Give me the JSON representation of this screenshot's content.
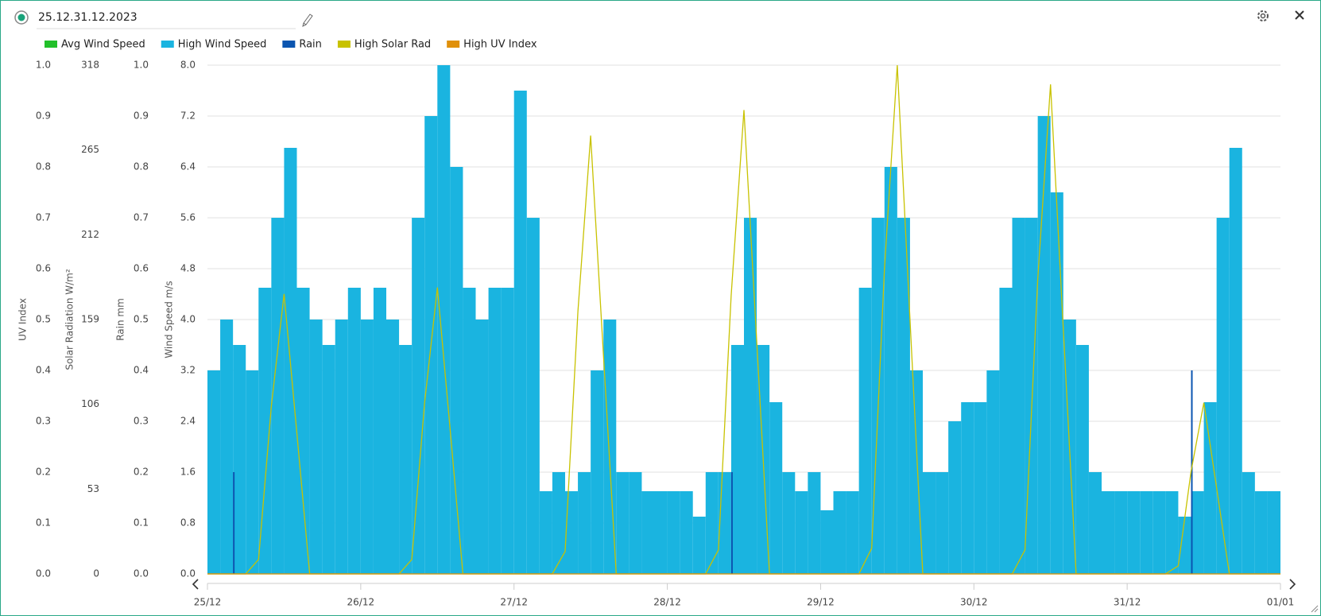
{
  "chart_data": {
    "type": "multi-axis",
    "title": "25.12.31.12.2023",
    "axes": [
      {
        "label": "UV Index",
        "lim": [
          0,
          1
        ],
        "ticks": [
          {
            "value": 0,
            "label": "0.0"
          },
          {
            "value": 0.1,
            "label": "0.1"
          },
          {
            "value": 0.2,
            "label": "0.2"
          },
          {
            "value": 0.3,
            "label": "0.3"
          },
          {
            "value": 0.4,
            "label": "0.4"
          },
          {
            "value": 0.5,
            "label": "0.5"
          },
          {
            "value": 0.6,
            "label": "0.6"
          },
          {
            "value": 0.7,
            "label": "0.7"
          },
          {
            "value": 0.8,
            "label": "0.8"
          },
          {
            "value": 0.9,
            "label": "0.9"
          },
          {
            "value": 1,
            "label": "1.0"
          }
        ]
      },
      {
        "label": "Solar Radiation W/m²",
        "lim": [
          0,
          318
        ],
        "ticks": [
          0,
          53,
          106,
          159,
          212,
          265,
          318
        ]
      },
      {
        "label": "Rain mm",
        "lim": [
          0,
          1
        ],
        "ticks": [
          {
            "value": 0,
            "label": "0.0"
          },
          {
            "value": 0.1,
            "label": "0.1"
          },
          {
            "value": 0.2,
            "label": "0.2"
          },
          {
            "value": 0.3,
            "label": "0.3"
          },
          {
            "value": 0.4,
            "label": "0.4"
          },
          {
            "value": 0.5,
            "label": "0.5"
          },
          {
            "value": 0.6,
            "label": "0.6"
          },
          {
            "value": 0.7,
            "label": "0.7"
          },
          {
            "value": 0.8,
            "label": "0.8"
          },
          {
            "value": 0.9,
            "label": "0.9"
          },
          {
            "value": 1,
            "label": "1.0"
          }
        ]
      },
      {
        "label": "Wind Speed m/s",
        "lim": [
          0,
          8
        ],
        "ticks": [
          {
            "value": 0,
            "label": "0.0"
          },
          {
            "value": 0.8,
            "label": "0.8"
          },
          {
            "value": 1.6,
            "label": "1.6"
          },
          {
            "value": 2.4,
            "label": "2.4"
          },
          {
            "value": 3.2,
            "label": "3.2"
          },
          {
            "value": 4,
            "label": "4.0"
          },
          {
            "value": 4.8,
            "label": "4.8"
          },
          {
            "value": 5.6,
            "label": "5.6"
          },
          {
            "value": 6.4,
            "label": "6.4"
          },
          {
            "value": 7.2,
            "label": "7.2"
          },
          {
            "value": 8,
            "label": "8.0"
          }
        ]
      }
    ],
    "xlim": [
      0,
      168
    ],
    "xticks": [
      {
        "value": 0,
        "label": "25/12"
      },
      {
        "value": 24,
        "label": "26/12"
      },
      {
        "value": 48,
        "label": "27/12"
      },
      {
        "value": 72,
        "label": "28/12"
      },
      {
        "value": 96,
        "label": "29/12"
      },
      {
        "value": 120,
        "label": "30/12"
      },
      {
        "value": 144,
        "label": "31/12"
      },
      {
        "value": 168,
        "label": "01/01"
      }
    ],
    "grid": true,
    "series": [
      {
        "name": "Avg Wind Speed",
        "color": "#22c02a",
        "style": "line",
        "axis": 3,
        "x": [
          0,
          168
        ],
        "values": [
          0,
          0
        ]
      },
      {
        "name": "High Wind Speed",
        "color": "#1ab4e0",
        "style": "bar",
        "axis": 3,
        "x": [
          0,
          2,
          4,
          6,
          8,
          10,
          12,
          14,
          16,
          18,
          20,
          22,
          24,
          26,
          28,
          30,
          32,
          34,
          36,
          38,
          40,
          42,
          44,
          46,
          48,
          50,
          52,
          54,
          56,
          58,
          60,
          62,
          64,
          66,
          68,
          70,
          72,
          74,
          76,
          78,
          80,
          82,
          84,
          86,
          88,
          90,
          92,
          94,
          96,
          98,
          100,
          102,
          104,
          106,
          108,
          110,
          112,
          114,
          116,
          118,
          120,
          122,
          124,
          126,
          128,
          130,
          132,
          134,
          136,
          138,
          140,
          142,
          144,
          146,
          148,
          150,
          152,
          154,
          156,
          158,
          160,
          162,
          164,
          166
        ],
        "values": [
          3.2,
          4.0,
          3.6,
          3.2,
          4.5,
          5.6,
          6.7,
          4.5,
          4.0,
          3.6,
          4.0,
          4.5,
          4.0,
          4.5,
          4.0,
          3.6,
          5.6,
          7.2,
          8.0,
          6.4,
          4.5,
          4.0,
          4.5,
          4.5,
          7.6,
          5.6,
          1.3,
          1.6,
          1.3,
          1.6,
          3.2,
          4.0,
          1.6,
          1.6,
          1.3,
          1.3,
          1.3,
          1.3,
          0.9,
          1.6,
          1.6,
          3.6,
          5.6,
          3.6,
          2.7,
          1.6,
          1.3,
          1.6,
          1.0,
          1.3,
          1.3,
          4.5,
          5.6,
          6.4,
          5.6,
          3.2,
          1.6,
          1.6,
          2.4,
          2.7,
          2.7,
          3.2,
          4.5,
          5.6,
          5.6,
          7.2,
          6.0,
          4.0,
          3.6,
          1.6,
          1.3,
          1.3,
          1.3,
          1.3,
          1.3,
          1.3,
          0.9,
          1.3,
          2.7,
          5.6,
          6.7,
          1.6,
          1.3,
          1.3
        ]
      },
      {
        "name": "Rain",
        "color": "#0b55b0",
        "style": "bar",
        "axis": 2,
        "x": [
          4,
          82,
          154
        ],
        "values": [
          0.2,
          0.2,
          0.4
        ]
      },
      {
        "name": "High Solar Rad",
        "color": "#c8c200",
        "style": "line",
        "axis": 1,
        "x": [
          0,
          2,
          4,
          6,
          8,
          10,
          12,
          14,
          16,
          18,
          20,
          22,
          24,
          26,
          28,
          30,
          32,
          34,
          36,
          38,
          40,
          42,
          44,
          46,
          48,
          50,
          52,
          54,
          56,
          58,
          60,
          62,
          64,
          66,
          68,
          70,
          72,
          74,
          76,
          78,
          80,
          82,
          84,
          86,
          88,
          90,
          92,
          94,
          96,
          98,
          100,
          102,
          104,
          106,
          108,
          110,
          112,
          114,
          116,
          118,
          120,
          122,
          124,
          126,
          128,
          130,
          132,
          134,
          136,
          138,
          140,
          142,
          144,
          146,
          148,
          150,
          152,
          154,
          156,
          158,
          160,
          162,
          164,
          166,
          168
        ],
        "values": [
          0,
          0,
          0,
          0,
          9,
          105,
          175,
          88,
          0,
          0,
          0,
          0,
          0,
          0,
          0,
          0,
          9,
          107,
          179,
          90,
          0,
          0,
          0,
          0,
          0,
          0,
          0,
          0,
          14,
          164,
          274,
          137,
          0,
          0,
          0,
          0,
          0,
          0,
          0,
          0,
          15,
          174,
          290,
          145,
          0,
          0,
          0,
          0,
          0,
          0,
          0,
          0,
          16,
          191,
          318,
          159,
          0,
          0,
          0,
          0,
          0,
          0,
          0,
          0,
          15,
          184,
          306,
          153,
          0,
          0,
          0,
          0,
          0,
          0,
          0,
          0,
          5,
          64,
          107,
          54,
          0,
          0,
          0,
          0,
          0
        ]
      },
      {
        "name": "High UV Index",
        "color": "#e0900a",
        "style": "line",
        "axis": 0,
        "x": [
          0,
          168
        ],
        "values": [
          0,
          0
        ]
      }
    ]
  }
}
